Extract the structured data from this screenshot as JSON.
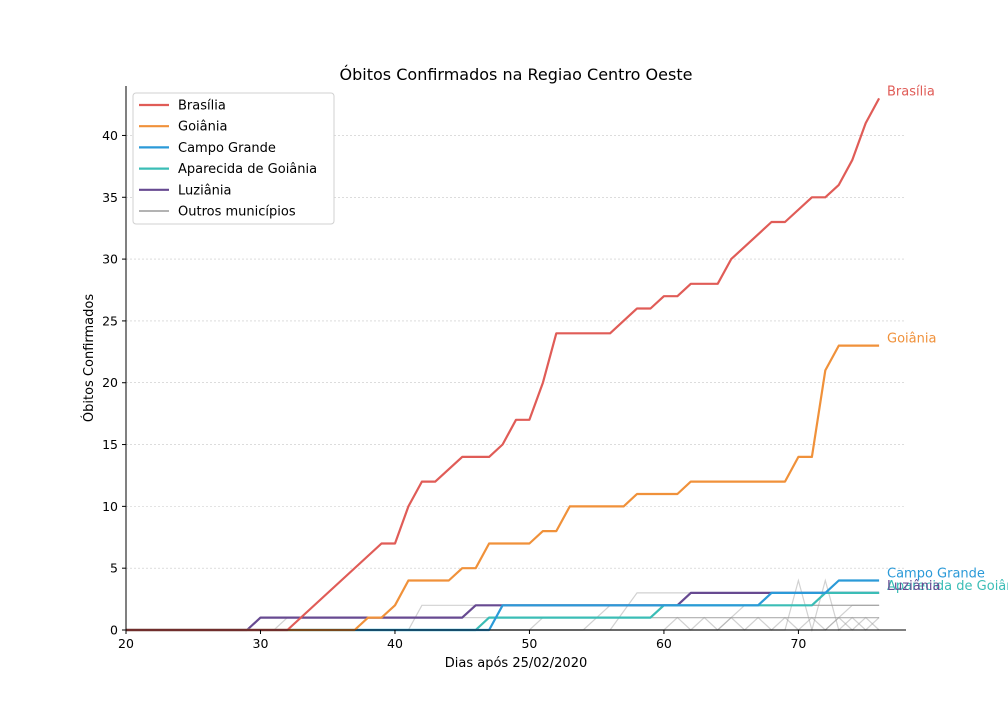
{
  "chart_data": {
    "type": "line",
    "title": "Óbitos Confirmados na Regiao Centro Oeste",
    "xlabel": "Dias após 25/02/2020",
    "ylabel": "Óbitos Confirmados",
    "xlim": [
      20,
      78
    ],
    "ylim": [
      0,
      44
    ],
    "xticks": [
      20,
      30,
      40,
      50,
      60,
      70
    ],
    "yticks": [
      0,
      5,
      10,
      15,
      20,
      25,
      30,
      35,
      40
    ],
    "grid": "horizontal",
    "legend_position": "top-left",
    "series": [
      {
        "name": "Brasília",
        "color": "#e05c57",
        "end_label": "Brasília",
        "points": [
          [
            20,
            0
          ],
          [
            32,
            0
          ],
          [
            39,
            7
          ],
          [
            40,
            7
          ],
          [
            41,
            10
          ],
          [
            42,
            12
          ],
          [
            43,
            12
          ],
          [
            45,
            14
          ],
          [
            47,
            14
          ],
          [
            48,
            15
          ],
          [
            49,
            17
          ],
          [
            50,
            17
          ],
          [
            51,
            20
          ],
          [
            52,
            24
          ],
          [
            56,
            24
          ],
          [
            58,
            26
          ],
          [
            59,
            26
          ],
          [
            60,
            27
          ],
          [
            61,
            27
          ],
          [
            62,
            28
          ],
          [
            64,
            28
          ],
          [
            65,
            30
          ],
          [
            68,
            33
          ],
          [
            69,
            33
          ],
          [
            71,
            35
          ],
          [
            72,
            35
          ],
          [
            73,
            36
          ],
          [
            74,
            38
          ],
          [
            75,
            41
          ],
          [
            76,
            43
          ]
        ]
      },
      {
        "name": "Goiânia",
        "color": "#f0913a",
        "end_label": "Goiânia",
        "points": [
          [
            20,
            0
          ],
          [
            37,
            0
          ],
          [
            38,
            1
          ],
          [
            39,
            1
          ],
          [
            40,
            2
          ],
          [
            41,
            4
          ],
          [
            44,
            4
          ],
          [
            45,
            5
          ],
          [
            46,
            5
          ],
          [
            47,
            7
          ],
          [
            50,
            7
          ],
          [
            51,
            8
          ],
          [
            52,
            8
          ],
          [
            53,
            10
          ],
          [
            57,
            10
          ],
          [
            58,
            11
          ],
          [
            61,
            11
          ],
          [
            62,
            12
          ],
          [
            69,
            12
          ],
          [
            70,
            14
          ],
          [
            71,
            14
          ],
          [
            72,
            21
          ],
          [
            73,
            23
          ],
          [
            76,
            23
          ]
        ]
      },
      {
        "name": "Campo Grande",
        "color": "#2b9ad8",
        "end_label": "Campo Grande",
        "points": [
          [
            20,
            0
          ],
          [
            47,
            0
          ],
          [
            48,
            2
          ],
          [
            59,
            2
          ],
          [
            60,
            2
          ],
          [
            62,
            2
          ],
          [
            67,
            2
          ],
          [
            68,
            3
          ],
          [
            72,
            3
          ],
          [
            73,
            4
          ],
          [
            76,
            4
          ]
        ]
      },
      {
        "name": "Aparecida de Goiânia",
        "color": "#3bbdb6",
        "end_label": "Aparecida de Goiânia",
        "points": [
          [
            20,
            0
          ],
          [
            46,
            0
          ],
          [
            47,
            1
          ],
          [
            59,
            1
          ],
          [
            60,
            2
          ],
          [
            71,
            2
          ],
          [
            72,
            3
          ],
          [
            76,
            3
          ]
        ]
      },
      {
        "name": "Luziânia",
        "color": "#674a91",
        "end_label": "Luziânia",
        "points": [
          [
            20,
            0
          ],
          [
            29,
            0
          ],
          [
            30,
            1
          ],
          [
            45,
            1
          ],
          [
            46,
            2
          ],
          [
            61,
            2
          ],
          [
            62,
            3
          ],
          [
            76,
            3
          ]
        ]
      }
    ],
    "others": {
      "name": "Outros municípios",
      "color": "#9a9a9a",
      "lines": [
        [
          [
            20,
            0
          ],
          [
            31,
            0
          ],
          [
            32,
            1
          ],
          [
            76,
            1
          ]
        ],
        [
          [
            20,
            0
          ],
          [
            41,
            0
          ],
          [
            42,
            2
          ],
          [
            76,
            2
          ]
        ],
        [
          [
            20,
            0
          ],
          [
            50,
            0
          ],
          [
            51,
            1
          ],
          [
            76,
            1
          ]
        ],
        [
          [
            20,
            0
          ],
          [
            54,
            0
          ],
          [
            56,
            2
          ],
          [
            76,
            2
          ]
        ],
        [
          [
            20,
            0
          ],
          [
            56,
            0
          ],
          [
            58,
            3
          ],
          [
            76,
            3
          ]
        ],
        [
          [
            20,
            0
          ],
          [
            60,
            0
          ],
          [
            61,
            1
          ],
          [
            62,
            0
          ],
          [
            63,
            1
          ],
          [
            64,
            0
          ],
          [
            65,
            1
          ],
          [
            66,
            0
          ],
          [
            67,
            1
          ],
          [
            68,
            0
          ],
          [
            69,
            1
          ],
          [
            70,
            0
          ],
          [
            71,
            1
          ],
          [
            72,
            0
          ],
          [
            73,
            1
          ],
          [
            74,
            0
          ],
          [
            75,
            1
          ],
          [
            76,
            0
          ]
        ],
        [
          [
            20,
            0
          ],
          [
            64,
            0
          ],
          [
            66,
            2
          ],
          [
            76,
            2
          ]
        ],
        [
          [
            20,
            0
          ],
          [
            69,
            0
          ],
          [
            70,
            4
          ],
          [
            71,
            0
          ],
          [
            72,
            4
          ],
          [
            73,
            0
          ],
          [
            74,
            1
          ],
          [
            75,
            0
          ],
          [
            76,
            1
          ]
        ],
        [
          [
            20,
            0
          ],
          [
            72,
            0
          ],
          [
            74,
            2
          ],
          [
            76,
            2
          ]
        ]
      ]
    }
  }
}
